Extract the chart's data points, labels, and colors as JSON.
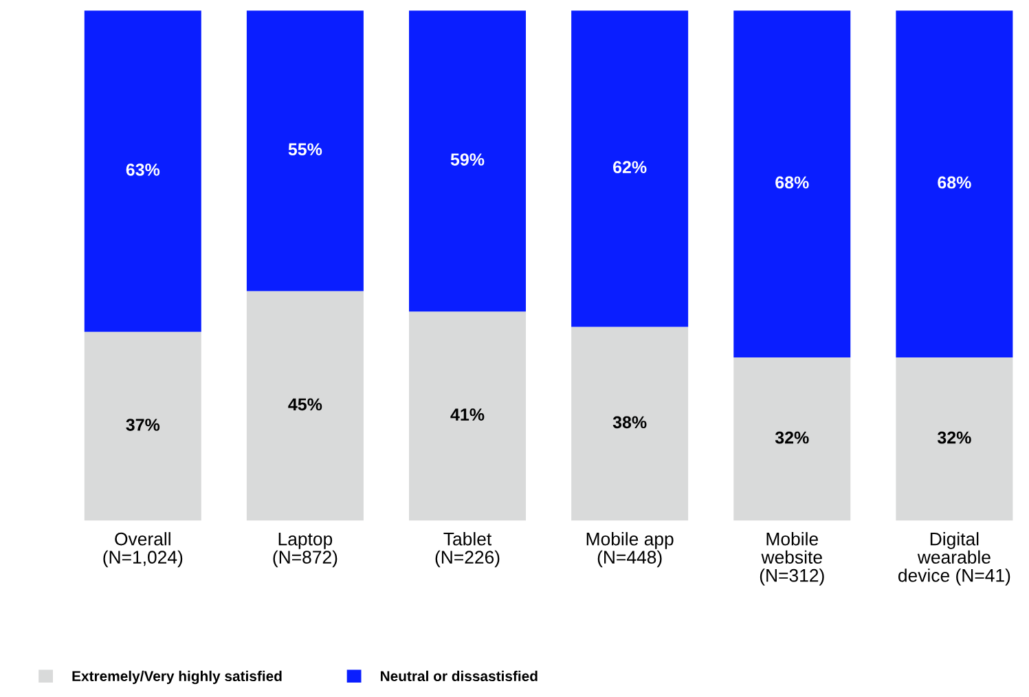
{
  "chart_data": {
    "type": "bar",
    "stacked": true,
    "categories": [
      "Overall\n(N=1,024)",
      "Laptop\n(N=872)",
      "Tablet\n(N=226)",
      "Mobile app\n(N=448)",
      "Mobile\nwebsite\n(N=312)",
      "Digital\nwearable\ndevice (N=41)"
    ],
    "series": [
      {
        "name": "Extremely/Very highly satisfied",
        "color": "#d9dada",
        "values": [
          37,
          45,
          41,
          38,
          32,
          32
        ],
        "value_labels": [
          "37%",
          "45%",
          "41%",
          "38%",
          "32%",
          "32%"
        ]
      },
      {
        "name": "Neutral or dissastisfied",
        "color": "#0a1eff",
        "values": [
          63,
          55,
          59,
          62,
          68,
          68
        ],
        "value_labels": [
          "63%",
          "55%",
          "59%",
          "62%",
          "68%",
          "68%"
        ]
      }
    ],
    "legend": "bottom",
    "grid": false
  }
}
